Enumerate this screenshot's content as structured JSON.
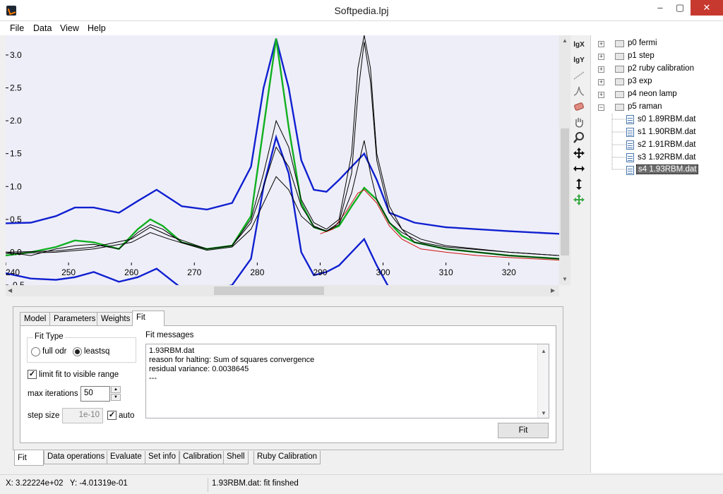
{
  "window": {
    "title": "Softpedia.lpj",
    "minimize": "–",
    "maximize": "▢",
    "close": "✕"
  },
  "menu": [
    "File",
    "Data",
    "View",
    "Help"
  ],
  "toolbar": {
    "lgx": "lgX",
    "lgy": "lgY"
  },
  "chart_data": {
    "type": "line",
    "xlim": [
      240,
      328
    ],
    "ylim": [
      -0.5,
      3.3
    ],
    "x_ticks": [
      240,
      250,
      260,
      270,
      280,
      290,
      300,
      310,
      320
    ],
    "y_ticks": [
      "3.0",
      "2.5",
      "2.0",
      "1.5",
      "1.0",
      "0.5",
      "0.0",
      "-0.5"
    ],
    "grid": false,
    "background": "#eeeef8",
    "series": [
      {
        "color": "#1020d0",
        "x": [
          240,
          244,
          248,
          251,
          254,
          258,
          261,
          264,
          268,
          272,
          276,
          279,
          281,
          283,
          285,
          287,
          289,
          291,
          293,
          295,
          297,
          299,
          301,
          305,
          310,
          315,
          320,
          328
        ],
        "y": [
          0.44,
          0.45,
          0.55,
          0.68,
          0.68,
          0.6,
          0.78,
          0.95,
          0.7,
          0.65,
          0.75,
          1.3,
          2.5,
          3.25,
          2.5,
          1.4,
          0.95,
          0.92,
          1.1,
          1.3,
          1.5,
          1.1,
          0.6,
          0.45,
          0.38,
          0.35,
          0.32,
          0.28
        ]
      },
      {
        "color": "#1020d0",
        "x": [
          240,
          244,
          248,
          251,
          254,
          258,
          261,
          264,
          268,
          272,
          276,
          279,
          281,
          283,
          285,
          287,
          289,
          291,
          293,
          295,
          297,
          299,
          301,
          305,
          310,
          315,
          320,
          328
        ],
        "y": [
          -0.32,
          -0.4,
          -0.42,
          -0.38,
          -0.3,
          -0.45,
          -0.38,
          -0.25,
          -0.55,
          -0.6,
          -0.5,
          -0.1,
          1.0,
          1.75,
          1.2,
          0.0,
          -0.35,
          -0.3,
          -0.2,
          0.0,
          0.2,
          -0.2,
          -0.55,
          -0.65,
          -0.65,
          -0.65,
          -0.65,
          -0.65
        ]
      },
      {
        "color": "#10b020",
        "x": [
          240,
          244,
          248,
          251,
          254,
          258,
          261,
          263,
          265,
          268,
          272,
          276,
          279,
          281,
          283,
          285,
          287,
          289,
          291,
          293,
          295,
          297,
          299,
          301,
          303,
          305,
          310,
          315,
          320,
          328
        ],
        "y": [
          -0.05,
          0.0,
          0.08,
          0.18,
          0.15,
          0.05,
          0.35,
          0.5,
          0.4,
          0.15,
          0.05,
          0.1,
          0.55,
          1.9,
          3.25,
          1.9,
          0.75,
          0.38,
          0.32,
          0.4,
          0.7,
          0.98,
          0.8,
          0.45,
          0.25,
          0.15,
          0.05,
          0.0,
          -0.05,
          -0.1
        ]
      },
      {
        "color": "#d01010",
        "x": [
          290,
          292,
          294,
          296,
          297,
          299,
          301,
          303,
          306,
          310,
          315,
          320,
          328
        ],
        "y": [
          0.28,
          0.35,
          0.6,
          0.9,
          0.95,
          0.75,
          0.4,
          0.2,
          0.05,
          0.0,
          -0.05,
          -0.08,
          -0.12
        ]
      },
      {
        "color": "#000000",
        "x": [
          240,
          244,
          248,
          251,
          254,
          258,
          261,
          263,
          265,
          268,
          272,
          276,
          279,
          281,
          283,
          285,
          287,
          289,
          291,
          293,
          295,
          296,
          297,
          298,
          299,
          301,
          303,
          305,
          310,
          315,
          320,
          328
        ],
        "y": [
          0.0,
          -0.05,
          0.05,
          0.1,
          0.12,
          0.05,
          0.3,
          0.42,
          0.35,
          0.15,
          0.05,
          0.1,
          0.5,
          1.2,
          2.0,
          1.6,
          0.8,
          0.45,
          0.35,
          0.5,
          1.5,
          2.8,
          3.3,
          2.8,
          1.5,
          0.7,
          0.35,
          0.15,
          0.05,
          0.0,
          -0.05,
          -0.1
        ]
      },
      {
        "color": "#000000",
        "x": [
          240,
          248,
          254,
          260,
          263,
          266,
          272,
          276,
          279,
          281,
          283,
          285,
          287,
          289,
          291,
          293,
          295,
          296,
          297,
          298,
          299,
          301,
          303,
          306,
          310,
          320,
          328
        ],
        "y": [
          0.0,
          0.02,
          0.08,
          0.2,
          0.38,
          0.25,
          0.05,
          0.1,
          0.45,
          1.0,
          1.6,
          1.3,
          0.7,
          0.4,
          0.32,
          0.45,
          1.2,
          2.4,
          3.2,
          2.6,
          1.4,
          0.6,
          0.35,
          0.2,
          0.1,
          0.0,
          -0.05
        ]
      },
      {
        "color": "#000000",
        "x": [
          240,
          248,
          254,
          260,
          263,
          266,
          272,
          276,
          279,
          281,
          283,
          285,
          287,
          289,
          291,
          293,
          295,
          296,
          297,
          298,
          299,
          301,
          303,
          306,
          310,
          320,
          328
        ],
        "y": [
          -0.02,
          0.0,
          0.05,
          0.15,
          0.3,
          0.2,
          0.03,
          0.08,
          0.35,
          0.75,
          1.15,
          0.95,
          0.55,
          0.38,
          0.32,
          0.42,
          0.9,
          1.3,
          1.7,
          1.2,
          0.8,
          0.45,
          0.3,
          0.15,
          0.08,
          0.0,
          -0.05
        ]
      }
    ]
  },
  "tree": {
    "projects": [
      {
        "label": "p0 fermi",
        "expander": "+"
      },
      {
        "label": "p1 step",
        "expander": "+"
      },
      {
        "label": "p2 ruby calibration",
        "expander": "+"
      },
      {
        "label": "p3 exp",
        "expander": "+"
      },
      {
        "label": "p4 neon lamp",
        "expander": "+"
      },
      {
        "label": "p5 raman",
        "expander": "−"
      }
    ],
    "files": [
      "s0 1.89RBM.dat",
      "s1 1.90RBM.dat",
      "s2 1.91RBM.dat",
      "s3 1.92RBM.dat",
      "s4 1.93RBM.dat"
    ]
  },
  "subtabs": [
    "Model",
    "Parameters",
    "Weights",
    "Fit"
  ],
  "fit": {
    "fit_type_label": "Fit Type",
    "radio_full_odr": "full odr",
    "radio_leastsq": "leastsq",
    "limit_label": "limit fit to visible range",
    "max_iter_label": "max iterations",
    "max_iter_value": "50",
    "step_size_label": "step size",
    "step_size_value": "1e-10",
    "auto_label": "auto",
    "messages_label": "Fit messages",
    "messages_text": "1.93RBM.dat\nreason for halting: Sum of squares convergence\nresidual variance: 0.0038645\n---",
    "fit_button": "Fit",
    "check_mark": "✓"
  },
  "bottom_tabs": [
    "Fit",
    "Data operations",
    "Evaluate",
    "Set info",
    "Calibration",
    "Shell",
    "Ruby Calibration"
  ],
  "status": {
    "coords": "X: 3.22224e+02   Y: -4.01319e-01",
    "message": "1.93RBM.dat: fit finshed"
  },
  "arrows": {
    "up": "▲",
    "down": "▼",
    "left": "◀",
    "right": "▶"
  }
}
